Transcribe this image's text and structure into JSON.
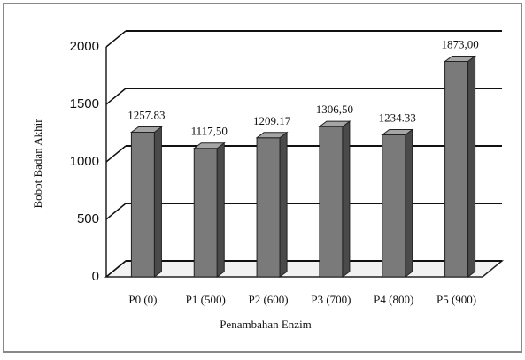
{
  "chart_data": {
    "type": "bar3d",
    "categories": [
      "P0 (0)",
      "P1 (500)",
      "P2 (600)",
      "P3 (700)",
      "P4 (800)",
      "P5 (900)"
    ],
    "values": [
      1257.83,
      1117.5,
      1209.17,
      1306.5,
      1234.33,
      1873.0
    ],
    "value_labels": [
      "1257.83",
      "1117,50",
      "1209.17",
      "1306,50",
      "1234.33",
      "1873,00"
    ],
    "color": "#7a7a7a",
    "ylim": [
      0,
      2000
    ],
    "yticks": [
      0,
      500,
      1000,
      1500,
      2000
    ],
    "grid": true,
    "ylabel": "Bobot Badan Akhir",
    "xlabel": "Penambahan Enzim"
  }
}
